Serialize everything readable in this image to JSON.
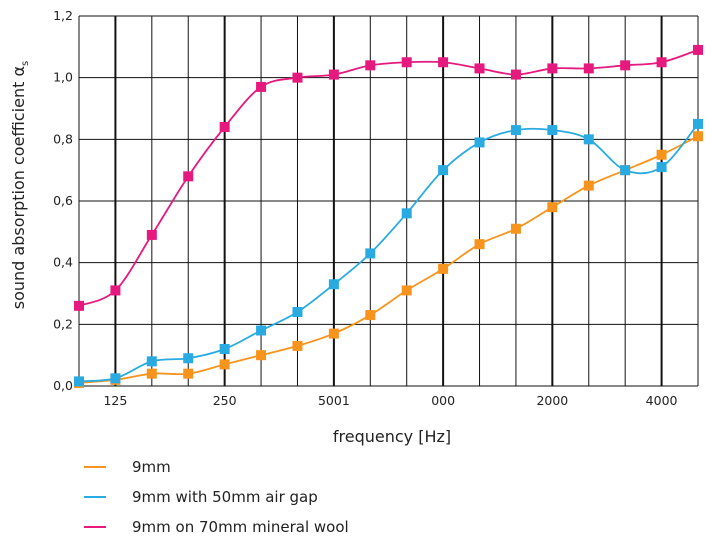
{
  "chart_data": {
    "type": "line",
    "title": "",
    "xlabel": "frequency [Hz]",
    "ylabel": "sound absorption coefficient α",
    "ylabel_subscript": "s",
    "ylim": [
      0,
      1.2
    ],
    "y_ticks": [
      "0,0",
      "0,2",
      "0,4",
      "0,6",
      "0,8",
      "1,0",
      "1,2"
    ],
    "x_tick_labels": [
      "125",
      "250",
      "5001",
      "000",
      "2000",
      "4000"
    ],
    "x": [
      "100",
      "125",
      "160",
      "200",
      "250",
      "315",
      "400",
      "500",
      "630",
      "800",
      "1000",
      "1250",
      "1600",
      "2000",
      "2500",
      "3150",
      "4000",
      "5000"
    ],
    "grid": true,
    "legend_position": "bottom",
    "series": [
      {
        "name": "9mm",
        "color": "#F7941D",
        "values": [
          0.01,
          0.02,
          0.04,
          0.04,
          0.07,
          0.1,
          0.13,
          0.17,
          0.23,
          0.31,
          0.38,
          0.46,
          0.51,
          0.58,
          0.65,
          0.7,
          0.75,
          0.81
        ]
      },
      {
        "name": "9mm with 50mm air gap",
        "color": "#29ABE2",
        "values": [
          0.015,
          0.025,
          0.08,
          0.09,
          0.12,
          0.18,
          0.24,
          0.33,
          0.43,
          0.56,
          0.7,
          0.79,
          0.83,
          0.83,
          0.8,
          0.7,
          0.71,
          0.85
        ]
      },
      {
        "name": "9mm on 70mm mineral wool",
        "color": "#E6197F",
        "values": [
          0.26,
          0.31,
          0.49,
          0.68,
          0.84,
          0.97,
          1.0,
          1.01,
          1.04,
          1.05,
          1.05,
          1.03,
          1.01,
          1.03,
          1.03,
          1.04,
          1.05,
          1.09
        ]
      }
    ]
  }
}
